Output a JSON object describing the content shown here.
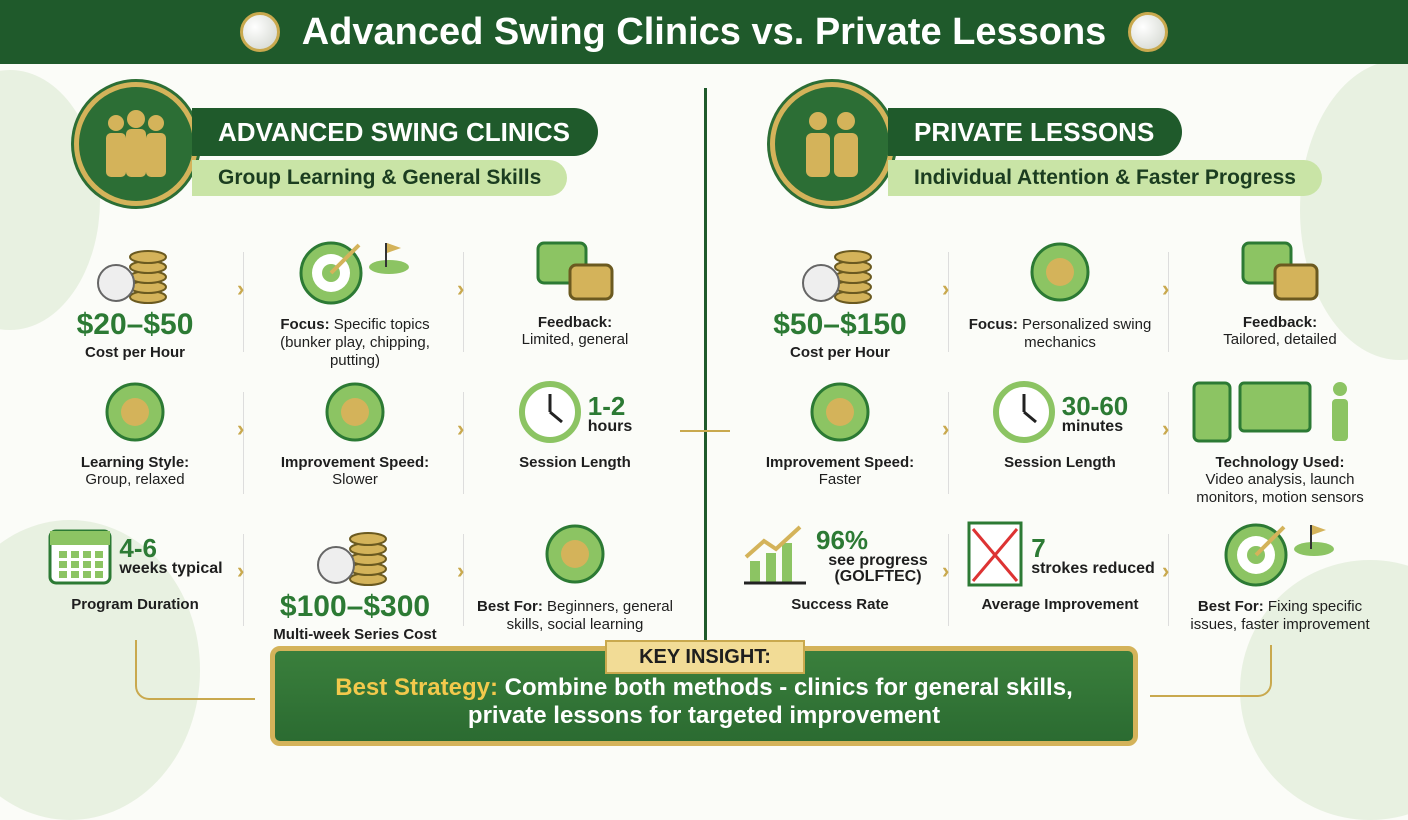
{
  "title": "Advanced Swing Clinics vs. Private Lessons",
  "colors": {
    "dark_green": "#1f5a2b",
    "accent_green": "#2c7a34",
    "light_green": "#c9e4a6",
    "gold": "#c9a94e"
  },
  "left": {
    "title": "ADVANCED SWING CLINICS",
    "subtitle": "Group Learning & General Skills",
    "icon": "group-golfers-icon",
    "cells": [
      {
        "icon": "coins-golf-ball-icon",
        "big": "$20–$50",
        "label": "Cost per Hour",
        "desc": ""
      },
      {
        "icon": "target-flag-clubs-icon",
        "label": "Focus:",
        "desc": "Specific topics (bunker play, chipping, putting)",
        "inline": true
      },
      {
        "icon": "chat-bubbles-check-icon",
        "label": "Feedback:",
        "desc": "Limited, general"
      },
      {
        "icon": "fist-bump-smiley-icon",
        "label": "Learning Style:",
        "desc": "Group, relaxed"
      },
      {
        "icon": "turtle-cap-icon",
        "label": "Improvement Speed:",
        "desc": "Slower"
      },
      {
        "icon": "clock-icon",
        "side_value": "1-2",
        "side_unit": "hours",
        "label": "Session Length",
        "desc": ""
      },
      {
        "icon": "calendar-icon",
        "side_value": "4-6",
        "side_unit": "weeks typical",
        "label": "Program Duration",
        "desc": ""
      },
      {
        "icon": "coins-calendar-icon",
        "big": "$100–$300",
        "label": "Multi-week Series Cost",
        "desc": ""
      },
      {
        "icon": "beginner-tee-group-icon",
        "label": "Best For:",
        "desc": "Beginners, general skills, social learning",
        "inline": true
      }
    ]
  },
  "right": {
    "title": "PRIVATE LESSONS",
    "subtitle": "Individual Attention & Faster Progress",
    "icon": "instructor-student-icon",
    "cells": [
      {
        "icon": "coins-club-icon",
        "big": "$50–$150",
        "label": "Cost per Hour",
        "desc": ""
      },
      {
        "icon": "magnifier-golfer-icon",
        "label": "Focus:",
        "desc": "Personalized swing mechanics",
        "inline": true
      },
      {
        "icon": "document-chat-pencil-icon",
        "label": "Feedback:",
        "desc": "Tailored, detailed"
      },
      {
        "icon": "rabbit-club-icon",
        "label": "Improvement Speed:",
        "desc": "Faster"
      },
      {
        "icon": "clock-icon",
        "side_value": "30-60",
        "side_unit": "minutes",
        "label": "Session Length",
        "desc": ""
      },
      {
        "icon": "tablet-monitor-sensor-icon",
        "label": "Technology Used:",
        "desc": "Video analysis, launch monitors, motion sensors"
      },
      {
        "icon": "growth-chart-icon",
        "side_value": "96%",
        "side_unit": "see progress (GOLFTEC)",
        "label": "Success Rate",
        "desc": ""
      },
      {
        "icon": "scorecard-icon",
        "side_value": "7",
        "side_unit": "strokes reduced",
        "label": "Average Improvement",
        "desc": ""
      },
      {
        "icon": "flag-to-target-icon",
        "label": "Best For:",
        "desc": "Fixing specific issues, faster improvement",
        "inline": true
      }
    ]
  },
  "insight": {
    "tab": "KEY INSIGHT:",
    "lead": "Best Strategy:",
    "line1": "Combine both methods - clinics for general skills,",
    "line2": "private lessons for targeted improvement"
  }
}
